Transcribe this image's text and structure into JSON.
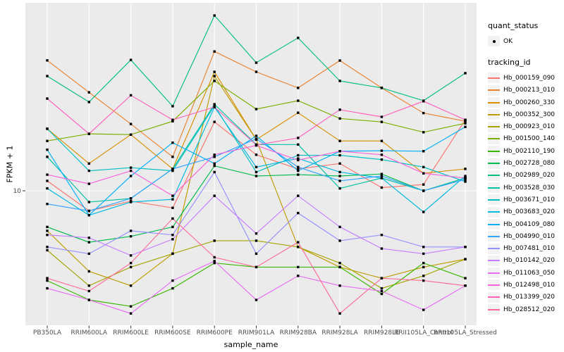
{
  "figure": {
    "background": "#FFFFFF",
    "panel_background": "#EBEBEB",
    "gridline_color": "#FFFFFF",
    "tick_color": "#333333",
    "tick_label_color": "#4D4D4D",
    "axis_title_color": "#000000",
    "point_color": "#000000"
  },
  "legend": {
    "quant_status_title": "quant_status",
    "quant_status_value": "OK",
    "quant_status_key_icon": "black-point-icon",
    "tracking_id_title": "tracking_id",
    "position": "right"
  },
  "chart_data": {
    "type": "line",
    "title": "",
    "xlabel": "sample_name",
    "ylabel": "FPKM + 1",
    "y_scale": "log10",
    "y_ticks": [
      10
    ],
    "ylim": [
      1.9,
      100
    ],
    "grid": "vertical category gridlines + horizontal gridline at 10",
    "legend_position": "right",
    "marker": "small black point at every value (quant_status OK)",
    "categories": [
      "PB350LA",
      "RRIM600LA",
      "RRIM600LE",
      "RRIM600SE",
      "RRIM600PE",
      "RRIM901LA",
      "RRIM928BA",
      "RRIM928LA",
      "RRIM928LE",
      "RRII105LA_Control",
      "RRII105LA_Stressed"
    ],
    "series": [
      {
        "name": "Hb_000159_090",
        "color": "#F8766D",
        "values": [
          11.3,
          7.8,
          8.8,
          8.1,
          23.4,
          15.6,
          13.1,
          14,
          10.4,
          10.8,
          24
        ]
      },
      {
        "name": "Hb_000213_010",
        "color": "#EA8331",
        "values": [
          50,
          33.7,
          22.8,
          15.2,
          55.8,
          43.4,
          35.6,
          49.9,
          35.6,
          26.1,
          23.6
        ]
      },
      {
        "name": "Hb_000260_330",
        "color": "#D89000",
        "values": [
          21.5,
          14,
          20,
          13.1,
          43.4,
          18.8,
          26.2,
          18.5,
          18.5,
          12.4,
          13.1
        ]
      },
      {
        "name": "Hb_000352_300",
        "color": "#C09B00",
        "values": [
          6.1,
          3.7,
          3.1,
          4.6,
          41.2,
          18.8,
          5,
          3.9,
          3.4,
          3.9,
          4.3
        ]
      },
      {
        "name": "Hb_000923_010",
        "color": "#A3A500",
        "values": [
          4.8,
          3.1,
          3.9,
          4.6,
          5.4,
          5.4,
          5,
          4.1,
          3,
          3.5,
          4.3
        ]
      },
      {
        "name": "Hb_001500_140",
        "color": "#7CAE00",
        "values": [
          18.5,
          20.2,
          20,
          23.6,
          38.8,
          27.4,
          30.4,
          24.4,
          23.4,
          20.6,
          23
        ]
      },
      {
        "name": "Hb_002110_190",
        "color": "#39B600",
        "values": [
          3.3,
          2.6,
          2.4,
          3,
          4.1,
          3.9,
          3.9,
          3.9,
          2.8,
          4.1,
          3.4
        ]
      },
      {
        "name": "Hb_002728_080",
        "color": "#00BB4E",
        "values": [
          6.4,
          5.3,
          5.7,
          6.4,
          13.6,
          12,
          12.2,
          12,
          12.3,
          10,
          11.7
        ]
      },
      {
        "name": "Hb_002989_020",
        "color": "#00BF7D",
        "values": [
          41.2,
          29.9,
          50.3,
          28.4,
          87,
          48.6,
          66,
          38.8,
          35.6,
          30.4,
          42.7
        ]
      },
      {
        "name": "Hb_003528_030",
        "color": "#00C1A3",
        "values": [
          15.2,
          8.7,
          9.1,
          13.1,
          29.1,
          17.7,
          17.7,
          10.3,
          11.7,
          10,
          11.7
        ]
      },
      {
        "name": "Hb_003671_010",
        "color": "#00BFC4",
        "values": [
          21.5,
          12.8,
          13.3,
          12.8,
          28.6,
          12.6,
          15.5,
          15.5,
          14.7,
          13.4,
          11.2
        ]
      },
      {
        "name": "Hb_003683_020",
        "color": "#00BAE0",
        "values": [
          10.3,
          7.4,
          8.7,
          9,
          28.1,
          13.4,
          14.9,
          12.6,
          11.7,
          7.7,
          12
        ]
      },
      {
        "name": "Hb_004109_080",
        "color": "#00B0F6",
        "values": [
          16.6,
          7.4,
          12,
          18.1,
          14,
          19.7,
          12.8,
          16.3,
          16.4,
          16.3,
          22
        ]
      },
      {
        "name": "Hb_004990_010",
        "color": "#35A2FF",
        "values": [
          8.5,
          7.8,
          9.1,
          13.1,
          15.2,
          19,
          13.4,
          11.3,
          12,
          10,
          11.5
        ]
      },
      {
        "name": "Hb_007481_010",
        "color": "#9590FF",
        "values": [
          5,
          4.6,
          6.1,
          5.8,
          12.6,
          4.6,
          7.6,
          5.4,
          5.8,
          5,
          5
        ]
      },
      {
        "name": "Hb_010142_020",
        "color": "#C77CFF",
        "values": [
          5.8,
          5.6,
          4.5,
          5.5,
          9.4,
          5.9,
          9.4,
          6.4,
          4.9,
          4.6,
          5
        ]
      },
      {
        "name": "Hb_011063_050",
        "color": "#E76BF3",
        "values": [
          3,
          2.6,
          2.2,
          3.3,
          4.2,
          2.6,
          3.5,
          3.1,
          2.9,
          2.3,
          3.1
        ]
      },
      {
        "name": "Hb_012498_010",
        "color": "#FA62DB",
        "values": [
          12.2,
          10.9,
          12.8,
          9.4,
          15.6,
          17.5,
          14.6,
          16.3,
          15.6,
          12.4,
          11.7
        ]
      },
      {
        "name": "Hb_013399_020",
        "color": "#FF62BC",
        "values": [
          31.2,
          20.2,
          32.5,
          24,
          28.1,
          17.6,
          19.2,
          27.2,
          24.9,
          30.2,
          24
        ]
      },
      {
        "name": "Hb_028512_020",
        "color": "#FF6A98",
        "values": [
          3.4,
          2.9,
          4.1,
          7.1,
          4.4,
          3.9,
          5.3,
          2.2,
          3.4,
          3.3,
          3.1
        ]
      }
    ]
  }
}
